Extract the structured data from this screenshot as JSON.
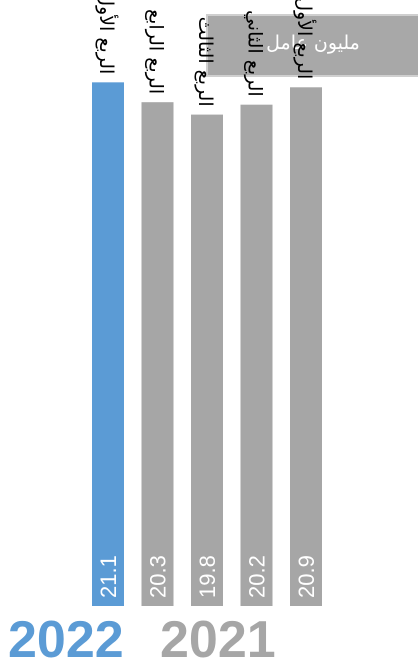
{
  "unit_label": "مليون عامل",
  "colors": {
    "highlight": "#5b9bd5",
    "default": "#a6a6a6",
    "unit_box": "#a8a8a8"
  },
  "years": {
    "left": "2022",
    "right": "2021"
  },
  "chart_data": {
    "type": "bar",
    "orientation": "vertical",
    "categories": [
      "الربع الأول",
      "الربع الرابع",
      "الربع الثالث",
      "الربع الثاني",
      "الربع الأول"
    ],
    "values": [
      21.1,
      20.3,
      19.8,
      20.2,
      20.9
    ],
    "groups": [
      "2022",
      "2021",
      "2021",
      "2021",
      "2021"
    ],
    "highlight_index": 0,
    "ylim": [
      0,
      22
    ],
    "grid": false,
    "legend": "none"
  }
}
